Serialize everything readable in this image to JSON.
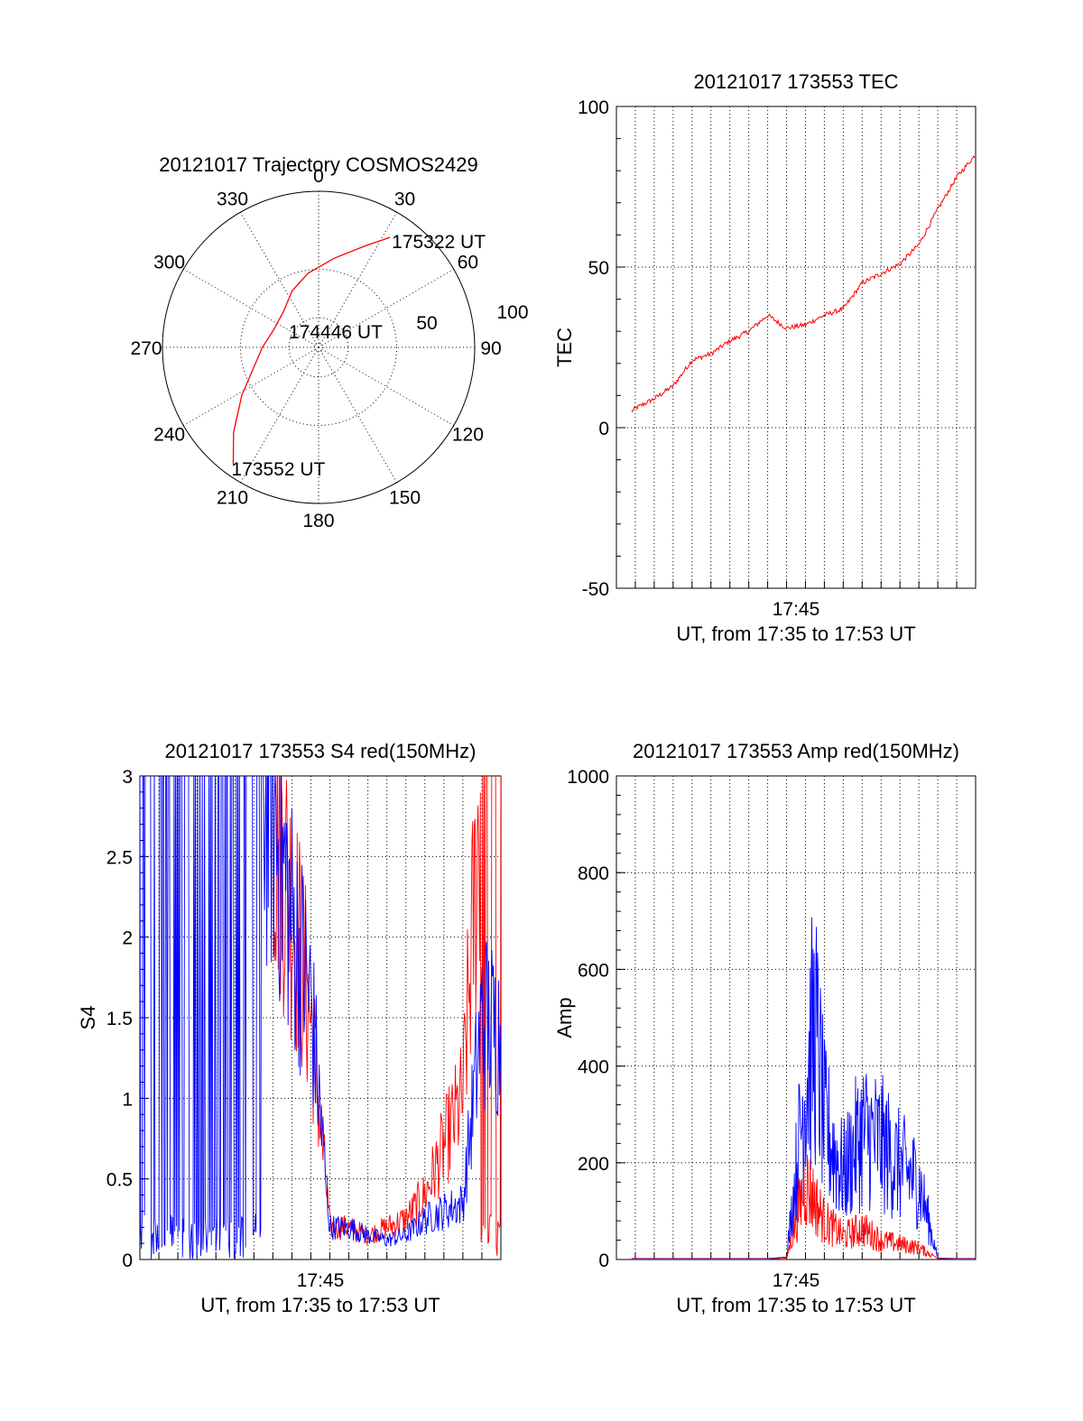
{
  "colors": {
    "red": "#ff0000",
    "blue": "#0000ff",
    "axis": "#000000"
  },
  "chart_data": [
    {
      "type": "polar",
      "title": "20121017 Trajectory COSMOS2429",
      "azimuth_labels": [
        "0",
        "30",
        "60",
        "90",
        "120",
        "150",
        "180",
        "210",
        "240",
        "270",
        "300",
        "330"
      ],
      "radial_labels": [
        "50",
        "100"
      ],
      "radial_range": [
        0,
        100
      ],
      "annotations": [
        "175322 UT",
        "174446 UT",
        "173552 UT"
      ],
      "trajectory": [
        {
          "az": 216,
          "r": 93
        },
        {
          "az": 225,
          "r": 77
        },
        {
          "az": 238,
          "r": 58
        },
        {
          "az": 252,
          "r": 44
        },
        {
          "az": 270,
          "r": 36
        },
        {
          "az": 290,
          "r": 31
        },
        {
          "az": 315,
          "r": 32
        },
        {
          "az": 335,
          "r": 40
        },
        {
          "az": 352,
          "r": 48
        },
        {
          "az": 10,
          "r": 58
        },
        {
          "az": 25,
          "r": 72
        },
        {
          "az": 33,
          "r": 84
        }
      ],
      "series_color": "#ff0000"
    },
    {
      "type": "line",
      "title": "20121017 173553 TEC",
      "ylabel": "TEC",
      "xlabel": "UT, from 17:35 to 17:53 UT",
      "xtick_labels": [
        "17:45"
      ],
      "ylim": [
        -50,
        100
      ],
      "yticks": [
        -50,
        0,
        50,
        100
      ],
      "grid": true,
      "x_unit": "minutes after 17:35",
      "x": [
        0,
        1,
        2,
        3,
        4,
        5,
        6,
        7,
        8,
        9,
        10,
        11,
        12,
        13,
        14,
        15,
        16,
        17,
        18,
        19
      ],
      "values": [
        1,
        6,
        9,
        13,
        21,
        23,
        27,
        30,
        35,
        31,
        32,
        35,
        37,
        45,
        48,
        51,
        57,
        68,
        78,
        85
      ],
      "series_color": "#ff0000"
    },
    {
      "type": "line",
      "title": "20121017 173553 S4 red(150MHz)",
      "ylabel": "S4",
      "xlabel": "UT, from 17:35 to 17:53 UT",
      "xtick_labels": [
        "17:45"
      ],
      "ylim": [
        0,
        3
      ],
      "yticks": [
        "0",
        "0.5",
        "1",
        "1.5",
        "2",
        "2.5",
        "3"
      ],
      "grid": true,
      "series": [
        {
          "color": "#0000ff",
          "x": [
            0,
            1,
            2,
            3,
            4,
            5,
            6,
            7,
            8,
            9,
            10,
            11,
            12,
            13,
            14,
            15,
            16,
            17,
            18,
            19
          ],
          "values": [
            3.0,
            3.0,
            3.0,
            3.0,
            3.0,
            3.0,
            3.0,
            2.8,
            2.1,
            1.6,
            0.2,
            0.2,
            0.15,
            0.12,
            0.15,
            0.25,
            0.3,
            0.35,
            1.5,
            1.4
          ]
        },
        {
          "color": "#ff0000",
          "x": [
            7,
            8,
            9,
            10,
            11,
            12,
            13,
            14,
            15,
            16,
            17,
            18,
            19
          ],
          "values": [
            2.8,
            2.2,
            1.5,
            0.2,
            0.2,
            0.15,
            0.2,
            0.25,
            0.4,
            0.7,
            1.0,
            3.0,
            3.0
          ]
        }
      ]
    },
    {
      "type": "line",
      "title": "20121017 173553 Amp red(150MHz)",
      "ylabel": "Amp",
      "xlabel": "UT, from 17:35 to 17:53 UT",
      "xtick_labels": [
        "17:45"
      ],
      "ylim": [
        0,
        1000
      ],
      "yticks": [
        0,
        200,
        400,
        600,
        800,
        1000
      ],
      "grid": true,
      "series": [
        {
          "color": "#0000ff",
          "x": [
            0,
            6,
            7,
            8,
            9,
            10,
            10.5,
            11,
            12,
            13,
            14,
            15,
            16,
            17,
            18,
            19
          ],
          "values": [
            2,
            2,
            2,
            2,
            5,
            450,
            600,
            350,
            220,
            330,
            300,
            240,
            200,
            3,
            2,
            2
          ]
        },
        {
          "color": "#ff0000",
          "x": [
            0,
            6,
            7,
            8,
            9,
            10,
            10.5,
            11,
            12,
            13,
            14,
            15,
            16,
            17,
            18,
            19
          ],
          "values": [
            1,
            1,
            1,
            1,
            3,
            200,
            150,
            100,
            60,
            80,
            50,
            40,
            30,
            2,
            1,
            1
          ]
        }
      ]
    }
  ]
}
